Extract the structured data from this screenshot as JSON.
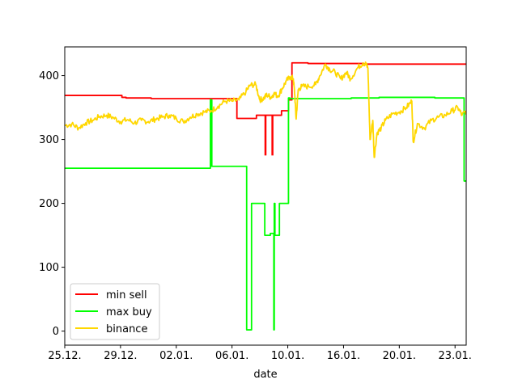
{
  "chart_data": {
    "type": "line",
    "title": "",
    "xlabel": "date",
    "ylabel": "",
    "x_tick_labels": [
      "25.12.",
      "29.12.",
      "02.01.",
      "06.01.",
      "10.01.",
      "16.01.",
      "20.01.",
      "23.01."
    ],
    "x_tick_days": [
      0,
      4,
      8,
      12,
      16,
      20,
      24,
      28
    ],
    "xlim_days": [
      0,
      28.8
    ],
    "y_ticks": [
      0,
      100,
      200,
      300,
      400
    ],
    "ylim": [
      -22,
      445
    ],
    "grid": false,
    "legend_position": "lower-left",
    "series": [
      {
        "name": "min sell",
        "color": "#ff0000",
        "step": true,
        "points": [
          [
            0,
            369
          ],
          [
            4,
            369
          ],
          [
            4.1,
            366
          ],
          [
            4.4,
            365
          ],
          [
            6,
            365
          ],
          [
            6.2,
            364
          ],
          [
            10.4,
            364
          ],
          [
            12.3,
            364
          ],
          [
            12.35,
            333
          ],
          [
            13.7,
            333
          ],
          [
            13.75,
            338
          ],
          [
            15.5,
            338
          ],
          [
            15.55,
            345
          ],
          [
            16.0,
            345
          ],
          [
            16.05,
            362
          ],
          [
            16.25,
            362
          ],
          [
            16.3,
            420
          ],
          [
            17.4,
            420
          ],
          [
            17.45,
            419
          ],
          [
            21.4,
            419
          ],
          [
            21.45,
            418
          ],
          [
            28.8,
            418
          ]
        ],
        "spikes": [
          {
            "x": 14.4,
            "low": 275,
            "high": 338
          },
          {
            "x": 14.9,
            "low": 275,
            "high": 338
          },
          {
            "x": 15.2,
            "low": 337,
            "high": 338
          }
        ]
      },
      {
        "name": "max buy",
        "color": "#00ff00",
        "step": true,
        "points": [
          [
            0,
            255
          ],
          [
            10.42,
            255
          ],
          [
            10.45,
            362
          ],
          [
            10.55,
            258
          ],
          [
            13.0,
            258
          ],
          [
            13.05,
            2
          ],
          [
            13.35,
            2
          ],
          [
            13.4,
            200
          ],
          [
            14.3,
            200
          ],
          [
            14.35,
            150
          ],
          [
            14.7,
            150
          ],
          [
            14.75,
            153
          ],
          [
            14.95,
            153
          ],
          [
            15.0,
            2
          ],
          [
            15.03,
            200
          ],
          [
            15.08,
            150
          ],
          [
            15.35,
            150
          ],
          [
            15.4,
            200
          ],
          [
            16.0,
            200
          ],
          [
            16.05,
            365
          ],
          [
            16.1,
            365
          ],
          [
            16.15,
            364
          ],
          [
            20.5,
            364
          ],
          [
            20.55,
            365
          ],
          [
            22.5,
            365
          ],
          [
            22.55,
            366
          ],
          [
            26.5,
            366
          ],
          [
            26.55,
            365
          ],
          [
            28.6,
            365
          ],
          [
            28.65,
            235
          ],
          [
            28.8,
            235
          ]
        ]
      },
      {
        "name": "binance",
        "color": "#ffd700",
        "step": false,
        "points": [
          [
            0,
            322
          ],
          [
            0.5,
            324
          ],
          [
            1,
            318
          ],
          [
            1.5,
            326
          ],
          [
            2,
            330
          ],
          [
            2.5,
            336
          ],
          [
            3,
            338
          ],
          [
            3.5,
            334
          ],
          [
            4,
            328
          ],
          [
            4.5,
            331
          ],
          [
            5,
            326
          ],
          [
            5.5,
            330
          ],
          [
            6,
            328
          ],
          [
            6.5,
            332
          ],
          [
            7,
            335
          ],
          [
            7.5,
            338
          ],
          [
            8,
            333
          ],
          [
            8.5,
            328
          ],
          [
            9,
            335
          ],
          [
            9.5,
            340
          ],
          [
            10,
            343
          ],
          [
            10.5,
            345
          ],
          [
            11,
            352
          ],
          [
            11.5,
            360
          ],
          [
            12,
            360
          ],
          [
            12.5,
            362
          ],
          [
            13,
            375
          ],
          [
            13.3,
            385
          ],
          [
            13.7,
            386
          ],
          [
            14,
            362
          ],
          [
            14.3,
            365
          ],
          [
            14.5,
            370
          ],
          [
            14.8,
            366
          ],
          [
            15,
            372
          ],
          [
            15.3,
            368
          ],
          [
            15.6,
            380
          ],
          [
            15.9,
            392
          ],
          [
            16.2,
            398
          ],
          [
            16.4,
            395
          ],
          [
            16.5,
            370
          ],
          [
            16.6,
            332
          ],
          [
            16.75,
            378
          ],
          [
            17,
            383
          ],
          [
            17.5,
            383
          ],
          [
            18,
            386
          ],
          [
            18.3,
            400
          ],
          [
            18.7,
            418
          ],
          [
            19,
            410
          ],
          [
            19.4,
            405
          ],
          [
            19.8,
            395
          ],
          [
            20.2,
            405
          ],
          [
            20.5,
            395
          ],
          [
            21,
            412
          ],
          [
            21.4,
            420
          ],
          [
            21.6,
            418
          ],
          [
            21.75,
            412
          ],
          [
            21.9,
            300
          ],
          [
            22.1,
            330
          ],
          [
            22.2,
            272
          ],
          [
            22.4,
            310
          ],
          [
            22.7,
            318
          ],
          [
            23,
            330
          ],
          [
            23.5,
            340
          ],
          [
            24,
            343
          ],
          [
            24.5,
            350
          ],
          [
            24.9,
            360
          ],
          [
            25.0,
            296
          ],
          [
            25.3,
            325
          ],
          [
            25.8,
            318
          ],
          [
            26.3,
            330
          ],
          [
            26.8,
            335
          ],
          [
            27.3,
            338
          ],
          [
            27.8,
            345
          ],
          [
            28.2,
            350
          ],
          [
            28.5,
            338
          ],
          [
            28.8,
            345
          ]
        ]
      }
    ]
  }
}
